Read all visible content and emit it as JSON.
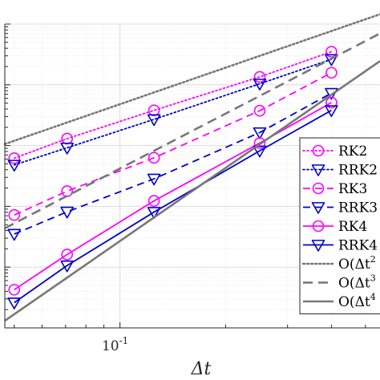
{
  "chart_data": {
    "type": "line",
    "xscale": "log",
    "yscale": "log",
    "xlabel": "Δt",
    "ylabel": "",
    "xlim": [
      0.047,
      0.55
    ],
    "ylim": [
      1e-06,
      0.1
    ],
    "grid": true,
    "minor_grid": true,
    "legend_position": "right",
    "x_tick_labels": [
      {
        "value": 0.1,
        "base": "10",
        "exp": "-1"
      }
    ],
    "series": [
      {
        "name": "RK2",
        "color": "#ff00ff",
        "line": "dotted",
        "marker": "circle",
        "x": [
          0.05,
          0.0707,
          0.125,
          0.25,
          0.4
        ],
        "values": [
          0.00062,
          0.0013,
          0.0038,
          0.0135,
          0.035
        ]
      },
      {
        "name": "RRK2",
        "color": "#0000cc",
        "line": "dotted",
        "marker": "triangle-down",
        "x": [
          0.05,
          0.0707,
          0.125,
          0.25,
          0.4
        ],
        "values": [
          0.00048,
          0.00092,
          0.0027,
          0.0104,
          0.0263
        ]
      },
      {
        "name": "RK3",
        "color": "#ff00ff",
        "line": "dashed",
        "marker": "circle",
        "x": [
          0.05,
          0.0707,
          0.125,
          0.25,
          0.4
        ],
        "values": [
          7.2e-05,
          0.000178,
          0.00063,
          0.00375,
          0.0158
        ]
      },
      {
        "name": "RRK3",
        "color": "#0000cc",
        "line": "dashed",
        "marker": "triangle-down",
        "x": [
          0.05,
          0.0707,
          0.125,
          0.25,
          0.4
        ],
        "values": [
          3.5e-05,
          8.13e-05,
          0.000284,
          0.00164,
          0.0073
        ]
      },
      {
        "name": "RK4",
        "color": "#ff00ff",
        "line": "solid",
        "marker": "circle",
        "x": [
          0.05,
          0.0707,
          0.125,
          0.25,
          0.4
        ],
        "values": [
          4.25e-06,
          1.61e-05,
          0.000123,
          0.0011,
          0.0051
        ]
      },
      {
        "name": "RRK4",
        "color": "#0000cc",
        "line": "solid",
        "marker": "triangle-down",
        "x": [
          0.05,
          0.0707,
          0.125,
          0.25,
          0.4
        ],
        "values": [
          2.6e-06,
          1.06e-05,
          8.04e-05,
          0.000821,
          0.0038
        ]
      },
      {
        "name": "O(Δt2)",
        "base": "O(Δt",
        "exp": "2",
        "color": "#777777",
        "line": "dotted",
        "marker": "none",
        "x": [
          0.047,
          0.55
        ],
        "values": [
          0.00106,
          0.145
        ]
      },
      {
        "name": "O(Δt3)",
        "base": "O(Δt",
        "exp": "3",
        "color": "#777777",
        "line": "dashed",
        "marker": "none",
        "x": [
          0.047,
          0.55
        ],
        "values": [
          4.36e-05,
          0.07
        ]
      },
      {
        "name": "O(Δt4)",
        "base": "O(Δt",
        "exp": "4",
        "color": "#777777",
        "line": "solid",
        "marker": "none",
        "x": [
          0.047,
          0.55
        ],
        "values": [
          1.31e-06,
          0.0246
        ]
      }
    ]
  }
}
